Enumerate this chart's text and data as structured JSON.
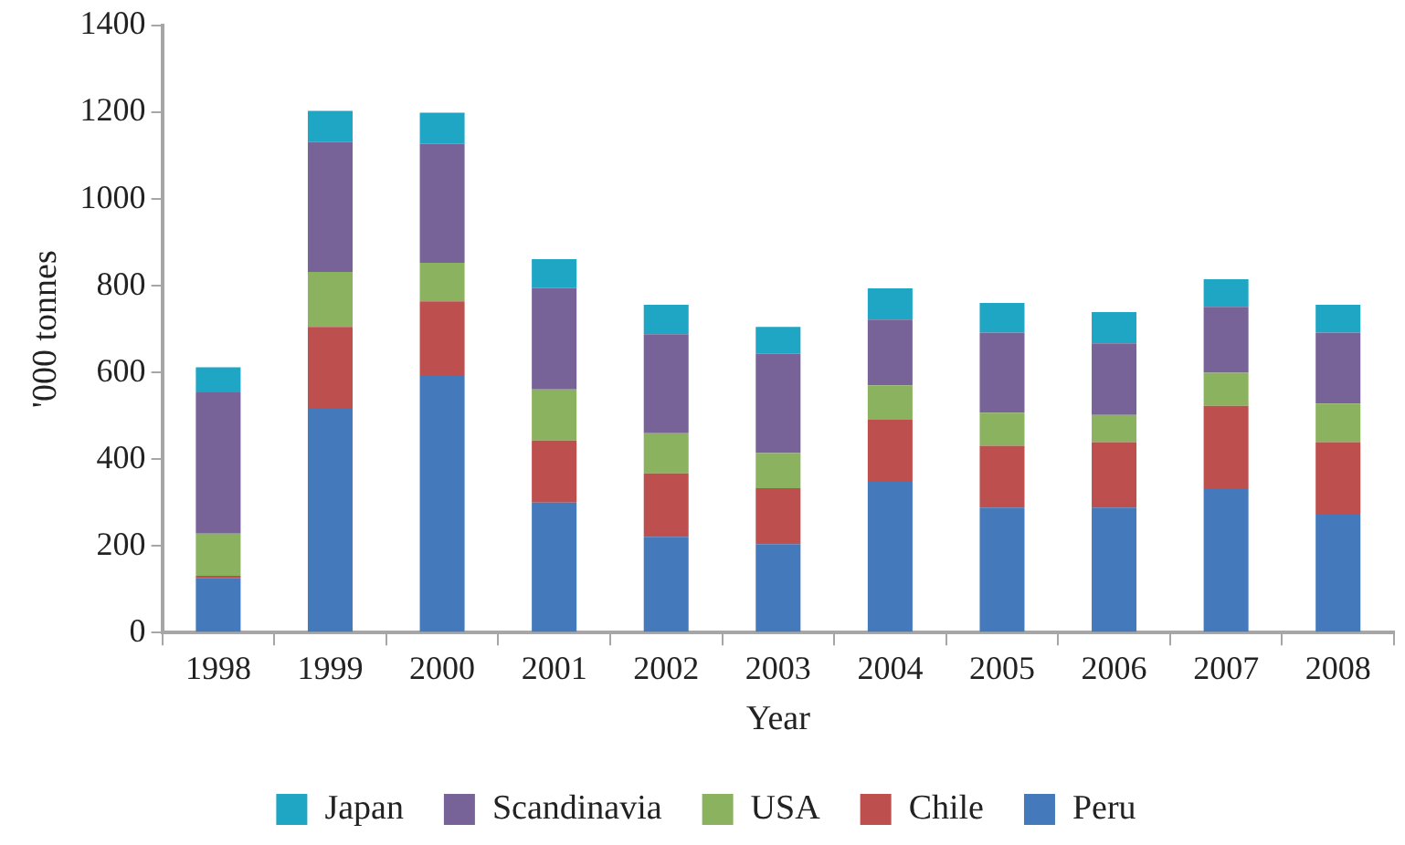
{
  "chart_data": {
    "type": "bar",
    "stacked": true,
    "xlabel": "Year",
    "ylabel": "'000 tonnes",
    "categories": [
      "1998",
      "1999",
      "2000",
      "2001",
      "2002",
      "2003",
      "2004",
      "2005",
      "2006",
      "2007",
      "2008"
    ],
    "series": [
      {
        "name": "Peru",
        "color": "#4479bb",
        "values": [
          125,
          518,
          592,
          300,
          221,
          204,
          350,
          288,
          288,
          333,
          274
        ]
      },
      {
        "name": "Chile",
        "color": "#bd504f",
        "values": [
          6,
          187,
          172,
          143,
          146,
          129,
          141,
          143,
          151,
          190,
          165
        ]
      },
      {
        "name": "USA",
        "color": "#8bb25f",
        "values": [
          97,
          127,
          89,
          118,
          93,
          81,
          79,
          76,
          63,
          76,
          89
        ]
      },
      {
        "name": "Scandinavia",
        "color": "#776398",
        "values": [
          326,
          299,
          274,
          234,
          228,
          229,
          152,
          185,
          165,
          152,
          164
        ]
      },
      {
        "name": "Japan",
        "color": "#1fa6c4",
        "values": [
          58,
          72,
          72,
          66,
          68,
          62,
          72,
          68,
          72,
          64,
          64
        ]
      }
    ],
    "ylim": [
      0,
      1400
    ],
    "yticks": [
      0,
      200,
      400,
      600,
      800,
      1000,
      1200,
      1400
    ],
    "grid": false,
    "legend": "bottom"
  }
}
